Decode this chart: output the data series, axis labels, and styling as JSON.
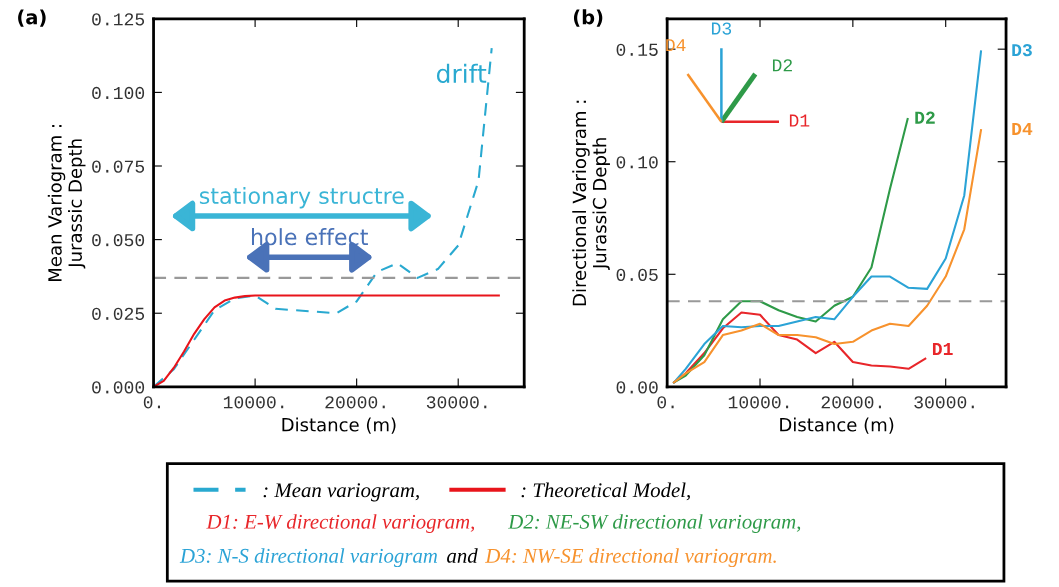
{
  "chart_data": [
    {
      "type": "line",
      "title": "(a)",
      "xlabel": "Distance (m)",
      "ylabel": "Mean Variogram :\nJurassic Depth",
      "xlim": [
        0,
        36500
      ],
      "ylim": [
        0,
        0.125
      ],
      "xticks": [
        {
          "value": 0,
          "label": "0."
        },
        {
          "value": 10000,
          "label": "10000."
        },
        {
          "value": 20000,
          "label": "20000."
        },
        {
          "value": 30000,
          "label": "30000."
        }
      ],
      "yticks": [
        {
          "value": 0,
          "label": "0.000"
        },
        {
          "value": 0.025,
          "label": "0.025"
        },
        {
          "value": 0.05,
          "label": "0.050"
        },
        {
          "value": 0.075,
          "label": "0.075"
        },
        {
          "value": 0.1,
          "label": "0.100"
        },
        {
          "value": 0.125,
          "label": "0.125"
        }
      ],
      "grid": false,
      "legend": "bottom",
      "series": [
        {
          "name": ": Mean variogram,",
          "color": "#29a9d0",
          "line_style": "dashed",
          "x": [
            0,
            2000,
            4000,
            6000,
            8000,
            10000,
            12000,
            14000,
            16000,
            18000,
            20000,
            22000,
            24000,
            26000,
            28000,
            30000,
            32000,
            33300
          ],
          "values": [
            0,
            0.006,
            0.016,
            0.026,
            0.03,
            0.031,
            0.0265,
            0.026,
            0.0255,
            0.025,
            0.029,
            0.039,
            0.042,
            0.037,
            0.04,
            0.048,
            0.07,
            0.115
          ]
        },
        {
          "name": ": Theoretical Model,",
          "color": "#e8141b",
          "line_style": "solid",
          "x": [
            0,
            1000,
            2000,
            3000,
            4000,
            5000,
            6000,
            7000,
            8000,
            9000,
            10000,
            34000
          ],
          "values": [
            0,
            0.002,
            0.0065,
            0.012,
            0.018,
            0.023,
            0.027,
            0.0293,
            0.0303,
            0.0308,
            0.031,
            0.031
          ]
        }
      ],
      "ref_lines": [
        {
          "axis": "y",
          "value": 0.037,
          "color": "#999999",
          "line_style": "dashed"
        }
      ],
      "annotations": [
        "drift",
        "stationary structre",
        "hole effect"
      ]
    },
    {
      "type": "line",
      "title": "(b)",
      "xlabel": "Distance (m)",
      "ylabel": "Directional Variogram :\nJurassiC Depth",
      "xlim": [
        0,
        36500
      ],
      "ylim": [
        0,
        0.1635
      ],
      "xticks": [
        {
          "value": 0,
          "label": "0."
        },
        {
          "value": 10000,
          "label": "10000."
        },
        {
          "value": 20000,
          "label": "20000."
        },
        {
          "value": 30000,
          "label": "30000."
        }
      ],
      "yticks": [
        {
          "value": 0,
          "label": "0.00"
        },
        {
          "value": 0.05,
          "label": "0.05"
        },
        {
          "value": 0.1,
          "label": "0.10"
        },
        {
          "value": 0.15,
          "label": "0.15"
        }
      ],
      "grid": false,
      "legend": false,
      "series": [
        {
          "name": "D1",
          "color": "#e8262a",
          "x": [
            740,
            2000,
            4000,
            6000,
            8000,
            10000,
            12000,
            14000,
            16000,
            18000,
            20000,
            22000,
            24000,
            26000,
            27800
          ],
          "values": [
            0.002,
            0.006,
            0.015,
            0.026,
            0.033,
            0.032,
            0.023,
            0.021,
            0.015,
            0.02,
            0.011,
            0.0095,
            0.009,
            0.008,
            0.0125
          ]
        },
        {
          "name": "D2",
          "color": "#2e9a48",
          "x": [
            740,
            2000,
            4000,
            6000,
            8000,
            10000,
            12000,
            14000,
            16000,
            18000,
            20000,
            22000,
            24000,
            25900
          ],
          "values": [
            0.002,
            0.005,
            0.014,
            0.03,
            0.038,
            0.038,
            0.034,
            0.031,
            0.029,
            0.036,
            0.04,
            0.053,
            0.088,
            0.119
          ]
        },
        {
          "name": "D3",
          "color": "#2ba3d6",
          "x": [
            740,
            2000,
            4000,
            6000,
            8000,
            10000,
            12000,
            14000,
            16000,
            18000,
            20000,
            22000,
            24000,
            26000,
            28000,
            30000,
            32000,
            33800
          ],
          "values": [
            0.002,
            0.008,
            0.019,
            0.027,
            0.0265,
            0.027,
            0.027,
            0.029,
            0.031,
            0.03,
            0.04,
            0.049,
            0.049,
            0.044,
            0.0435,
            0.057,
            0.085,
            0.149
          ]
        },
        {
          "name": "D4",
          "color": "#f7922d",
          "x": [
            740,
            2000,
            4000,
            6000,
            8000,
            10000,
            12000,
            14000,
            16000,
            18000,
            20000,
            22000,
            24000,
            26000,
            28000,
            30000,
            32000,
            33800
          ],
          "values": [
            0.002,
            0.006,
            0.011,
            0.023,
            0.025,
            0.028,
            0.023,
            0.023,
            0.022,
            0.019,
            0.02,
            0.025,
            0.028,
            0.027,
            0.036,
            0.049,
            0.07,
            0.114
          ]
        }
      ],
      "ref_lines": [
        {
          "axis": "y",
          "value": 0.038,
          "color": "#999999",
          "line_style": "dashed"
        }
      ],
      "annotations": [
        "D1",
        "D2",
        "D3",
        "D4"
      ]
    },
    {
      "type": "other",
      "annotations": [
        "D1: E-W directional variogram,",
        "D2: NE-SW directional variogram,",
        "D3: N-S directional variogram",
        "and",
        "D4: NW-SE directional variogram."
      ]
    }
  ]
}
